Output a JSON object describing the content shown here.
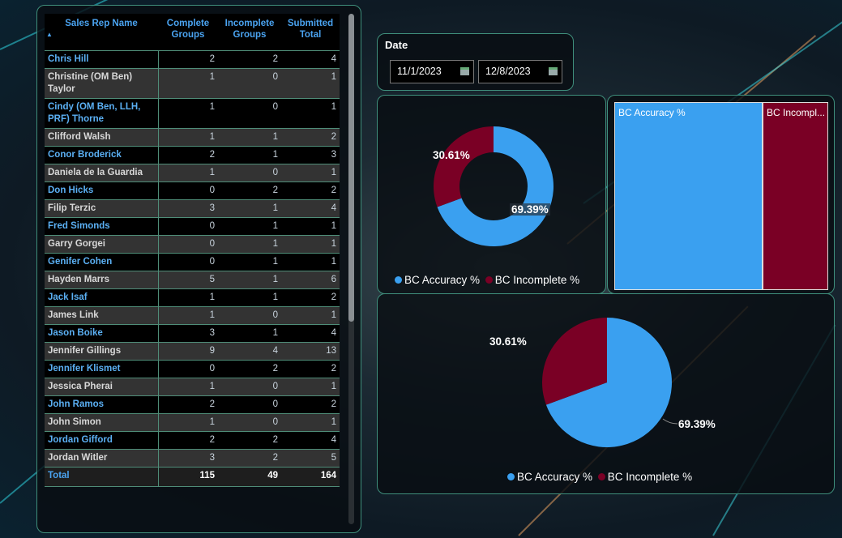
{
  "table": {
    "headers": [
      "Sales Rep Name",
      "Complete Groups",
      "Incomplete Groups",
      "Submitted Total"
    ],
    "rows": [
      [
        "Chris Hill",
        "2",
        "2",
        "4"
      ],
      [
        "Christine (OM Ben) Taylor",
        "1",
        "0",
        "1"
      ],
      [
        "Cindy (OM Ben, LLH, PRF) Thorne",
        "1",
        "0",
        "1"
      ],
      [
        "Clifford Walsh",
        "1",
        "1",
        "2"
      ],
      [
        "Conor Broderick",
        "2",
        "1",
        "3"
      ],
      [
        "Daniela de la Guardia",
        "1",
        "0",
        "1"
      ],
      [
        "Don Hicks",
        "0",
        "2",
        "2"
      ],
      [
        "Filip Terzic",
        "3",
        "1",
        "4"
      ],
      [
        "Fred Simonds",
        "0",
        "1",
        "1"
      ],
      [
        "Garry Gorgei",
        "0",
        "1",
        "1"
      ],
      [
        "Genifer Cohen",
        "0",
        "1",
        "1"
      ],
      [
        "Hayden Marrs",
        "5",
        "1",
        "6"
      ],
      [
        "Jack Isaf",
        "1",
        "1",
        "2"
      ],
      [
        "James Link",
        "1",
        "0",
        "1"
      ],
      [
        "Jason Boike",
        "3",
        "1",
        "4"
      ],
      [
        "Jennifer Gillings",
        "9",
        "4",
        "13"
      ],
      [
        "Jennifer Klismet",
        "0",
        "2",
        "2"
      ],
      [
        "Jessica Pherai",
        "1",
        "0",
        "1"
      ],
      [
        "John Ramos",
        "2",
        "0",
        "2"
      ],
      [
        "John Simon",
        "1",
        "0",
        "1"
      ],
      [
        "Jordan Gifford",
        "2",
        "2",
        "4"
      ],
      [
        "Jordan Witler",
        "3",
        "2",
        "5"
      ]
    ],
    "total": [
      "Total",
      "115",
      "49",
      "164"
    ]
  },
  "date": {
    "label": "Date",
    "start": "11/1/2023",
    "end": "12/8/2023"
  },
  "colors": {
    "accuracy": "#3aa0f0",
    "incomplete": "#7a0025"
  },
  "donut": {
    "accuracy_label": "69.39%",
    "incomplete_label": "30.61%",
    "legend": [
      "BC Accuracy %",
      "BC Incomplete %"
    ]
  },
  "treemap": {
    "items": [
      "BC Accuracy %",
      "BC Incompl..."
    ]
  },
  "pie": {
    "accuracy_label": "69.39%",
    "incomplete_label": "30.61%",
    "legend": [
      "BC Accuracy %",
      "BC Incomplete %"
    ]
  },
  "chart_data": [
    {
      "type": "pie",
      "variant": "donut",
      "categories": [
        "BC Accuracy %",
        "BC Incomplete %"
      ],
      "values": [
        69.39,
        30.61
      ]
    },
    {
      "type": "treemap",
      "categories": [
        "BC Accuracy %",
        "BC Incomplete %"
      ],
      "values": [
        69.39,
        30.61
      ]
    },
    {
      "type": "pie",
      "categories": [
        "BC Accuracy %",
        "BC Incomplete %"
      ],
      "values": [
        69.39,
        30.61
      ]
    }
  ]
}
